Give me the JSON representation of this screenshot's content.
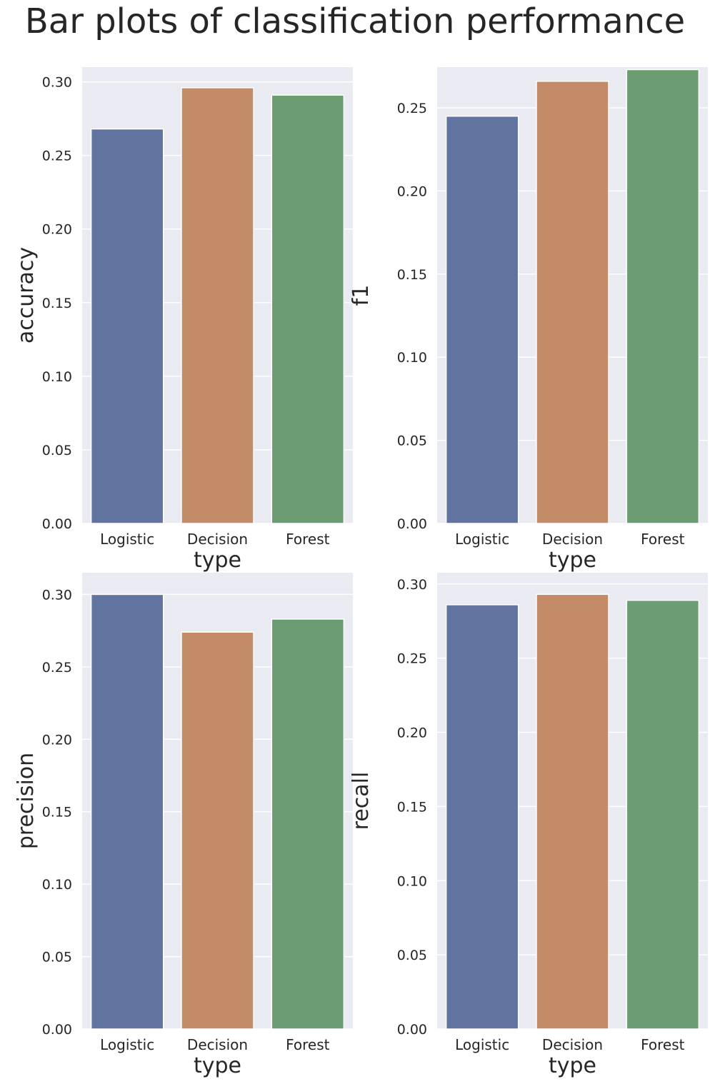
{
  "title": "Bar plots of classification performance",
  "colors": {
    "background": "#eaeaf2",
    "grid": "#ffffff",
    "text": "#262626",
    "bars": [
      "#6174a0",
      "#c38b67",
      "#6c9d72"
    ]
  },
  "chart_data": [
    {
      "type": "bar",
      "categories": [
        "Logistic",
        "Decision",
        "Forest"
      ],
      "values": [
        0.268,
        0.296,
        0.291
      ],
      "xlabel": "type",
      "ylabel": "accuracy",
      "ylim": [
        0,
        0.31
      ],
      "yticks": [
        "0.00",
        "0.05",
        "0.10",
        "0.15",
        "0.20",
        "0.25",
        "0.30"
      ],
      "grid": true
    },
    {
      "type": "bar",
      "categories": [
        "Logistic",
        "Decision",
        "Forest"
      ],
      "values": [
        0.245,
        0.266,
        0.273
      ],
      "xlabel": "type",
      "ylabel": "f1",
      "ylim": [
        0,
        0.2745
      ],
      "yticks": [
        "0.00",
        "0.05",
        "0.10",
        "0.15",
        "0.20",
        "0.25"
      ],
      "grid": true
    },
    {
      "type": "bar",
      "categories": [
        "Logistic",
        "Decision",
        "Forest"
      ],
      "values": [
        0.3,
        0.274,
        0.283
      ],
      "xlabel": "type",
      "ylabel": "precision",
      "ylim": [
        0,
        0.315
      ],
      "yticks": [
        "0.00",
        "0.05",
        "0.10",
        "0.15",
        "0.20",
        "0.25",
        "0.30"
      ],
      "grid": true
    },
    {
      "type": "bar",
      "categories": [
        "Logistic",
        "Decision",
        "Forest"
      ],
      "values": [
        0.286,
        0.293,
        0.289
      ],
      "xlabel": "type",
      "ylabel": "recall",
      "ylim": [
        0,
        0.3076
      ],
      "yticks": [
        "0.00",
        "0.05",
        "0.10",
        "0.15",
        "0.20",
        "0.25",
        "0.30"
      ],
      "grid": true
    }
  ]
}
